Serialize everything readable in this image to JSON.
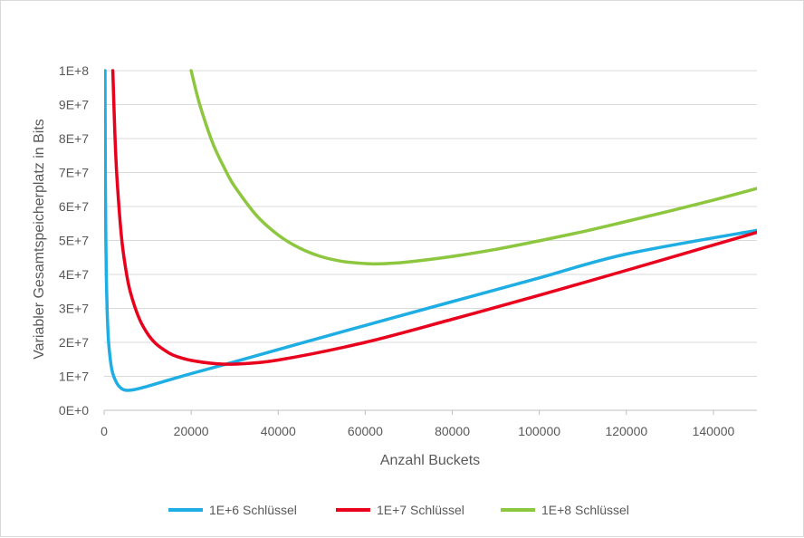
{
  "chart_data": {
    "type": "line",
    "xlabel": "Anzahl Buckets",
    "ylabel": "Variabler Gesamtspeicherplatz in Bits",
    "xlim": [
      0,
      150000
    ],
    "ylim": [
      0,
      100000000
    ],
    "x_ticks": [
      0,
      20000,
      40000,
      60000,
      80000,
      100000,
      120000,
      140000
    ],
    "x_tick_labels": [
      "0",
      "20000",
      "40000",
      "60000",
      "80000",
      "100000",
      "120000",
      "140000"
    ],
    "y_ticks": [
      0,
      10000000,
      20000000,
      30000000,
      40000000,
      50000000,
      60000000,
      70000000,
      80000000,
      90000000,
      100000000
    ],
    "y_tick_labels": [
      "0E+0",
      "1E+7",
      "2E+7",
      "3E+7",
      "4E+7",
      "5E+7",
      "6E+7",
      "7E+7",
      "8E+7",
      "9E+7",
      "1E+8"
    ],
    "grid": "horizontal",
    "legend_position": "bottom",
    "series": [
      {
        "name": "1E+6 Schlüssel",
        "color": "#1FAEE3",
        "x": [
          200,
          250,
          300,
          400,
          500,
          700,
          1000,
          1500,
          2000,
          3000,
          4000,
          5000,
          7000,
          10000,
          20000,
          30000,
          40000,
          60000,
          80000,
          100000,
          120000,
          150000
        ],
        "y": [
          100000000,
          80300000,
          67000000,
          50400000,
          40400000,
          29000000,
          20600000,
          14200000,
          10800000,
          7800000,
          6400000,
          5900000,
          6100000,
          7100000,
          10800000,
          14300000,
          17900000,
          25000000,
          32000000,
          39000000,
          46000000,
          53000000
        ]
      },
      {
        "name": "1E+7 Schlüssel",
        "color": "#E8001C",
        "x": [
          2000,
          2500,
          3000,
          4000,
          5000,
          6000,
          8000,
          10000,
          12000,
          15000,
          17000,
          20000,
          25000,
          30000,
          40000,
          60000,
          80000,
          100000,
          120000,
          150000
        ],
        "y": [
          100000000,
          80500000,
          67500000,
          51000000,
          41400000,
          35000000,
          27200000,
          22500000,
          19500000,
          16800000,
          15700000,
          14700000,
          13800000,
          13600000,
          14800000,
          20000000,
          26800000,
          33900000,
          41200000,
          52400000
        ],
        "y_comment": ""
      },
      {
        "name": "1E+8 Schlüssel",
        "color": "#8DC63F",
        "x": [
          20000,
          22000,
          25000,
          28000,
          30000,
          35000,
          40000,
          45000,
          50000,
          55000,
          60000,
          62000,
          65000,
          70000,
          80000,
          90000,
          100000,
          110000,
          120000,
          130000,
          140000,
          150000
        ],
        "y": [
          100000000,
          89900000,
          78500000,
          70400000,
          65900000,
          57400000,
          51600000,
          47700000,
          45200000,
          43800000,
          43200000,
          43100000,
          43200000,
          43700000,
          45300000,
          47400000,
          49900000,
          52600000,
          55600000,
          58700000,
          61900000,
          65300000
        ]
      }
    ]
  }
}
